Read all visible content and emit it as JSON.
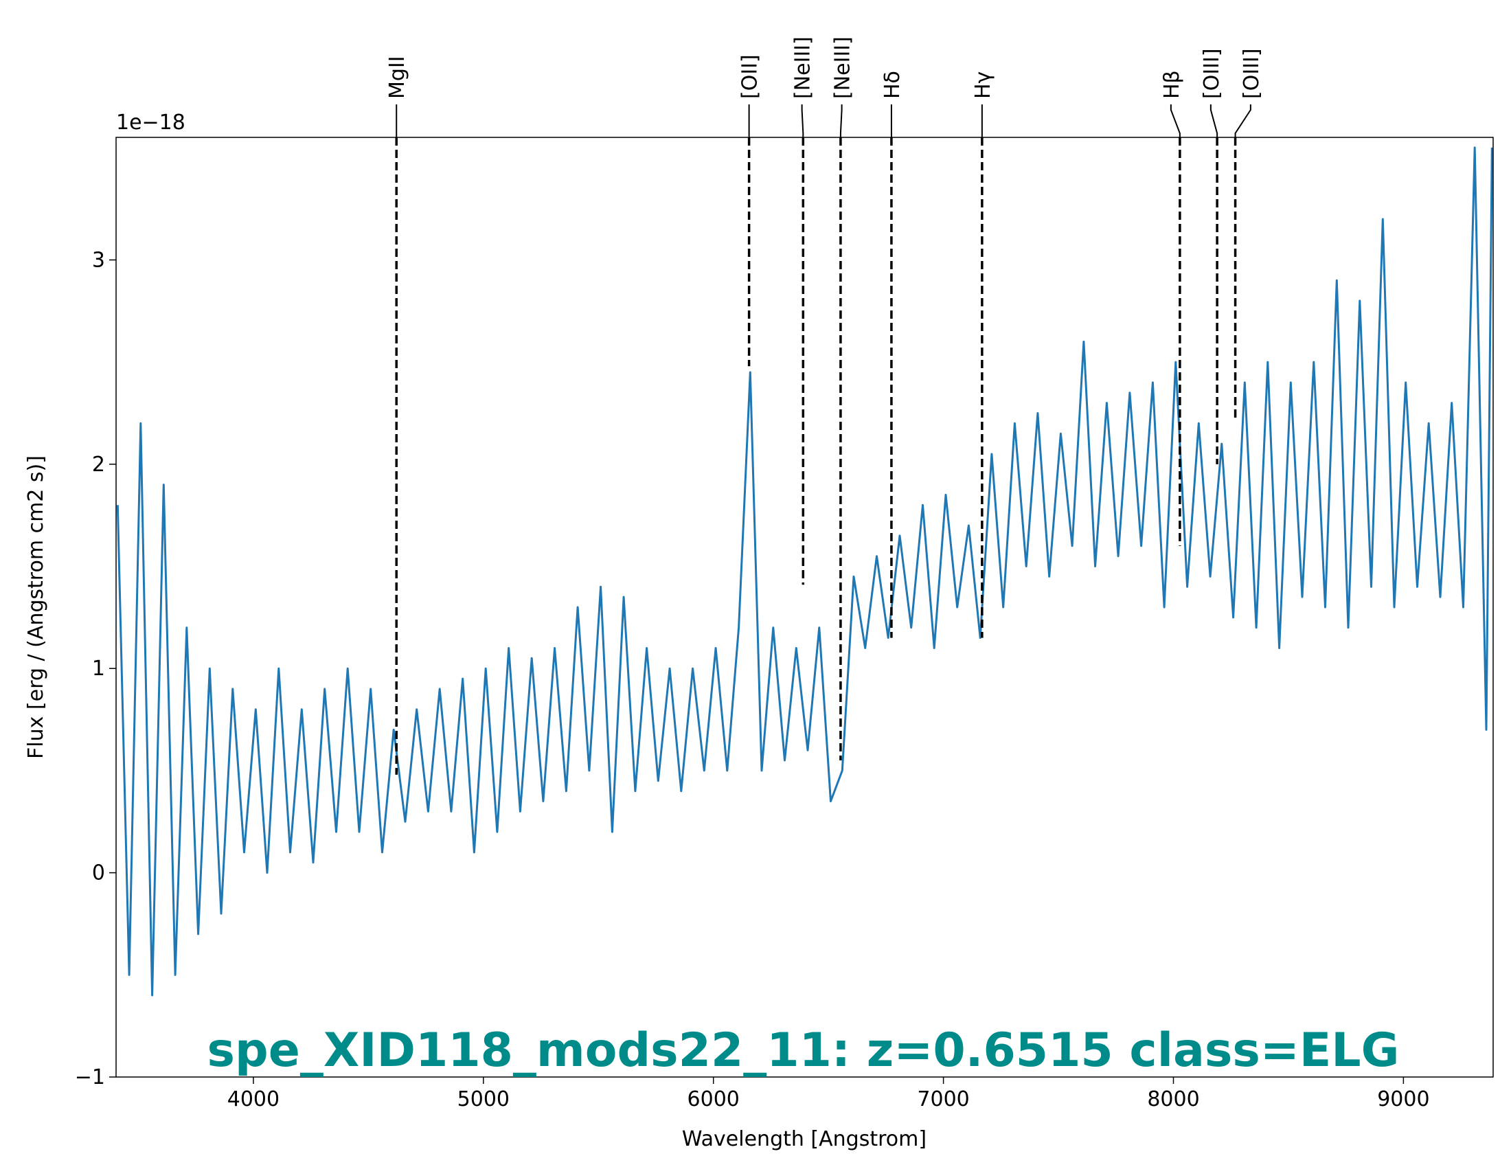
{
  "chart_data": {
    "type": "line",
    "title": "spe_XID118_mods22_11: z=0.6515 class=ELG",
    "title_color": "#008b8b",
    "xlabel": "Wavelength [Angstrom]",
    "ylabel": "Flux [erg / (Angstrom cm2 s)]",
    "y_offset_label": "1e−18",
    "color": "#1f77b4",
    "xlim": [
      3403,
      9390
    ],
    "ylim": [
      -1,
      3.6
    ],
    "xticks": [
      4000,
      5000,
      6000,
      7000,
      8000,
      9000
    ],
    "yticks": [
      {
        "value": -1,
        "label": "−1"
      },
      0,
      1,
      2,
      3
    ],
    "x": [
      3410,
      3460,
      3510,
      3560,
      3610,
      3660,
      3710,
      3760,
      3810,
      3860,
      3910,
      3960,
      4010,
      4060,
      4110,
      4160,
      4210,
      4260,
      4310,
      4360,
      4410,
      4460,
      4510,
      4560,
      4610,
      4660,
      4710,
      4760,
      4810,
      4860,
      4910,
      4960,
      5010,
      5060,
      5110,
      5160,
      5210,
      5260,
      5310,
      5360,
      5410,
      5460,
      5510,
      5560,
      5610,
      5660,
      5710,
      5760,
      5810,
      5860,
      5910,
      5960,
      6010,
      6060,
      6110,
      6160,
      6210,
      6260,
      6310,
      6360,
      6410,
      6460,
      6510,
      6560,
      6610,
      6660,
      6710,
      6760,
      6810,
      6860,
      6910,
      6960,
      7010,
      7060,
      7110,
      7160,
      7210,
      7260,
      7310,
      7360,
      7410,
      7460,
      7510,
      7560,
      7610,
      7660,
      7710,
      7760,
      7810,
      7860,
      7910,
      7960,
      8010,
      8060,
      8110,
      8160,
      8210,
      8260,
      8310,
      8360,
      8410,
      8460,
      8510,
      8560,
      8610,
      8660,
      8710,
      8760,
      8810,
      8860,
      8910,
      8960,
      9010,
      9060,
      9110,
      9160,
      9210,
      9260,
      9310,
      9360,
      9385
    ],
    "values": [
      1.8,
      -0.5,
      2.2,
      -0.6,
      1.9,
      -0.5,
      1.2,
      -0.3,
      1.0,
      -0.2,
      0.9,
      0.1,
      0.8,
      0.0,
      1.0,
      0.1,
      0.8,
      0.05,
      0.9,
      0.2,
      1.0,
      0.2,
      0.9,
      0.1,
      0.7,
      0.25,
      0.8,
      0.3,
      0.9,
      0.3,
      0.95,
      0.1,
      1.0,
      0.2,
      1.1,
      0.3,
      1.05,
      0.35,
      1.1,
      0.4,
      1.3,
      0.5,
      1.4,
      0.2,
      1.35,
      0.4,
      1.1,
      0.45,
      1.0,
      0.4,
      1.0,
      0.5,
      1.1,
      0.5,
      1.2,
      2.45,
      0.5,
      1.2,
      0.55,
      1.1,
      0.6,
      1.2,
      0.35,
      0.5,
      1.45,
      1.1,
      1.55,
      1.15,
      1.65,
      1.2,
      1.8,
      1.1,
      1.85,
      1.3,
      1.7,
      1.15,
      2.05,
      1.3,
      2.2,
      1.5,
      2.25,
      1.45,
      2.15,
      1.6,
      2.6,
      1.5,
      2.3,
      1.55,
      2.35,
      1.6,
      2.4,
      1.3,
      2.5,
      1.4,
      2.2,
      1.45,
      2.1,
      1.25,
      2.4,
      1.2,
      2.5,
      1.1,
      2.4,
      1.35,
      2.5,
      1.3,
      2.9,
      1.2,
      2.8,
      1.4,
      3.2,
      1.3,
      2.4,
      1.4,
      2.2,
      1.35,
      2.3,
      1.3,
      3.55,
      0.7,
      3.55
    ],
    "lines": [
      {
        "name": "MgII",
        "x": 4622,
        "y": 0.48
      },
      {
        "name": "[OII]",
        "x": 6155,
        "y": 2.48
      },
      {
        "name": "[NeIII]",
        "x": 6390,
        "y": 1.41
      },
      {
        "name": "[NeIII]",
        "x": 6553,
        "y": 0.55
      },
      {
        "name": "Hδ",
        "x": 6774,
        "y": 1.15
      },
      {
        "name": "Hγ",
        "x": 7168,
        "y": 1.15
      },
      {
        "name": "Hβ",
        "x": 8028,
        "y": 1.6
      },
      {
        "name": "[OIII]",
        "x": 8190,
        "y": 2.0
      },
      {
        "name": "[OIII]",
        "x": 8269,
        "y": 2.22
      }
    ]
  }
}
